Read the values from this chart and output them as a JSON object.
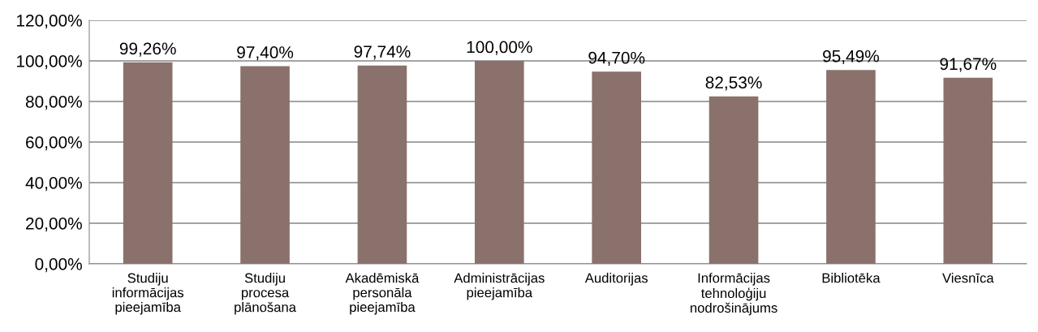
{
  "chart_data": {
    "type": "bar",
    "categories": [
      "Studiju informācijas pieejamība",
      "Studiju procesa plānošana",
      "Akadēmiskā personāla pieejamība",
      "Administrācijas pieejamība",
      "Auditorijas",
      "Informācijas tehnoloģiju nodrošinājums",
      "Bibliotēka",
      "Viesnīca"
    ],
    "values": [
      99.26,
      97.4,
      97.74,
      100.0,
      94.7,
      82.53,
      95.49,
      91.67
    ],
    "value_labels": [
      "99,26%",
      "97,40%",
      "97,74%",
      "100,00%",
      "94,70%",
      "82,53%",
      "95,49%",
      "91,67%"
    ],
    "color": "#8a716b",
    "ylim": [
      0,
      120
    ],
    "yticks": [
      {
        "value": 0,
        "label": "0,00%"
      },
      {
        "value": 20,
        "label": "20,00%"
      },
      {
        "value": 40,
        "label": "40,00%"
      },
      {
        "value": 60,
        "label": "60,00%"
      },
      {
        "value": 80,
        "label": "80,00%"
      },
      {
        "value": 100,
        "label": "100,00%"
      },
      {
        "value": 120,
        "label": "120,00%"
      }
    ],
    "grid": "y",
    "legend": false
  }
}
